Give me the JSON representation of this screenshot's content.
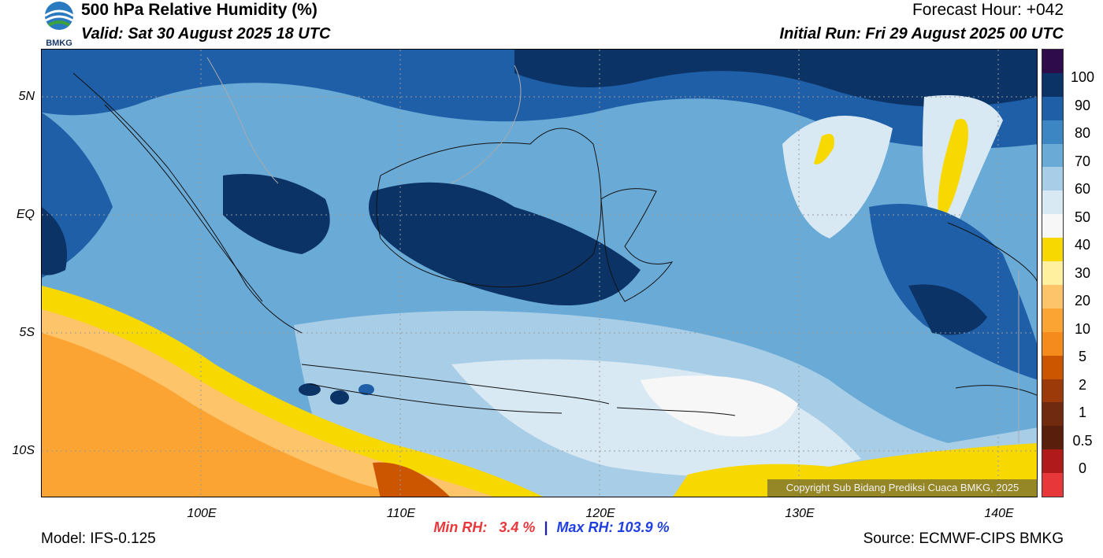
{
  "header": {
    "logo_text": "BMKG",
    "title": "500 hPa Relative Humidity (%)",
    "valid": "Valid: Sat 30 August 2025 18 UTC",
    "forecast_hour": "Forecast Hour: +042",
    "initial_run": "Initial Run: Fri 29 August 2025 00 UTC"
  },
  "map": {
    "variable": "relative humidity",
    "level_hpa": 500,
    "lon_range": [
      92,
      142
    ],
    "lat_range": [
      -12,
      7
    ],
    "lat_labels": [
      {
        "label": "5N",
        "lat": 5
      },
      {
        "label": "EQ",
        "lat": 0
      },
      {
        "label": "5S",
        "lat": -5
      },
      {
        "label": "10S",
        "lat": -10
      }
    ],
    "lon_labels": [
      {
        "label": "100E",
        "lon": 100
      },
      {
        "label": "110E",
        "lon": 110
      },
      {
        "label": "120E",
        "lon": 120
      },
      {
        "label": "130E",
        "lon": 130
      },
      {
        "label": "140E",
        "lon": 140
      }
    ],
    "copyright": "Copyright Sub Bidang Prediksi Cuaca BMKG, 2025"
  },
  "colorbar": {
    "labels": [
      "100",
      "90",
      "80",
      "70",
      "60",
      "50",
      "40",
      "30",
      "20",
      "10",
      "5",
      "2",
      "1",
      "0.5",
      "0"
    ],
    "colors": [
      "#2e0b4b",
      "#0b3366",
      "#1f5fa8",
      "#3b86c3",
      "#6aaad6",
      "#a8cde6",
      "#d9e9f4",
      "#f7f7f7",
      "#f7d800",
      "#fff0a0",
      "#fec46a",
      "#fba433",
      "#f58a1d",
      "#cc5500",
      "#9c3a0a",
      "#702a10",
      "#5a1e0c",
      "#b01a1a",
      "#e8373b"
    ]
  },
  "stats": {
    "min_label": "Min RH:",
    "min_value": "3.4 %",
    "separator": "|",
    "max_label": "Max RH:",
    "max_value": "103.9 %"
  },
  "footer": {
    "model": "Model: IFS-0.125",
    "source": "Source: ECMWF-CIPS BMKG"
  }
}
